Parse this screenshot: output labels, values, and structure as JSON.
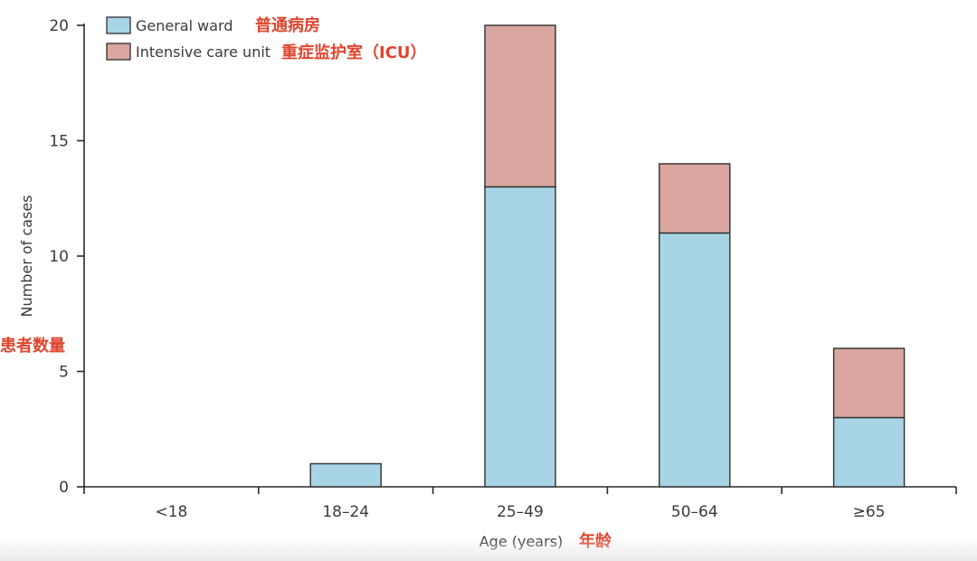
{
  "chart_data": {
    "type": "bar",
    "stacked": true,
    "categories": [
      "<18",
      "18–24",
      "25–49",
      "50–64",
      "≥65"
    ],
    "series": [
      {
        "name": "General ward",
        "name_zh": "普通病房",
        "values": [
          0,
          1,
          13,
          11,
          3
        ],
        "color": "#a8d5e5"
      },
      {
        "name": "Intensive care unit",
        "name_zh": "重症监护室（ICU）",
        "values": [
          0,
          0,
          7,
          3,
          3
        ],
        "color": "#d9a6a0"
      }
    ],
    "ylabel": "Number of cases",
    "ylabel_zh": "患者数量",
    "xlabel": "Age (years)",
    "xlabel_zh": "年龄",
    "ylim": [
      0,
      20
    ],
    "yticks": [
      0,
      5,
      10,
      15,
      20
    ],
    "grid": false,
    "legend_position": "top-left",
    "annotation_color": "#e0452e"
  }
}
